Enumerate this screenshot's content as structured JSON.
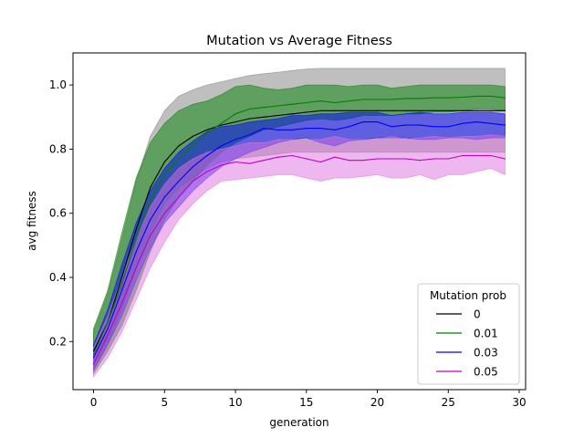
{
  "chart_data": {
    "type": "line",
    "title": "Mutation vs Average Fitness",
    "xlabel": "generation",
    "ylabel": "avg fitness",
    "xlim": [
      -1.45,
      30.45
    ],
    "ylim": [
      0.05,
      1.1
    ],
    "xticks": [
      0,
      5,
      10,
      15,
      20,
      25,
      30
    ],
    "yticks": [
      0.2,
      0.4,
      0.6,
      0.8,
      1.0
    ],
    "xtick_labels": [
      "0",
      "5",
      "10",
      "15",
      "20",
      "25",
      "30"
    ],
    "ytick_labels": [
      "0.2",
      "0.4",
      "0.6",
      "0.8",
      "1.0"
    ],
    "grid": false,
    "legend": {
      "title": "Mutation prob",
      "placement": "lower-right"
    },
    "x": [
      0,
      1,
      2,
      3,
      4,
      5,
      6,
      7,
      8,
      9,
      10,
      11,
      12,
      13,
      14,
      15,
      16,
      17,
      18,
      19,
      20,
      21,
      22,
      23,
      24,
      25,
      26,
      27,
      28,
      29
    ],
    "series": [
      {
        "name": "0",
        "color": "#000000",
        "band_color": "#808080",
        "values": [
          0.17,
          0.26,
          0.4,
          0.55,
          0.68,
          0.76,
          0.81,
          0.84,
          0.86,
          0.875,
          0.885,
          0.895,
          0.9,
          0.905,
          0.91,
          0.915,
          0.92,
          0.92,
          0.92,
          0.92,
          0.92,
          0.92,
          0.92,
          0.92,
          0.92,
          0.92,
          0.92,
          0.92,
          0.92,
          0.92
        ],
        "upper": [
          0.23,
          0.35,
          0.52,
          0.7,
          0.84,
          0.92,
          0.965,
          0.985,
          1.0,
          1.01,
          1.02,
          1.03,
          1.035,
          1.04,
          1.045,
          1.05,
          1.052,
          1.052,
          1.052,
          1.052,
          1.052,
          1.052,
          1.052,
          1.052,
          1.052,
          1.052,
          1.052,
          1.052,
          1.052,
          1.052
        ],
        "lower": [
          0.11,
          0.19,
          0.3,
          0.43,
          0.54,
          0.63,
          0.68,
          0.71,
          0.74,
          0.76,
          0.77,
          0.775,
          0.78,
          0.785,
          0.79,
          0.79,
          0.79,
          0.79,
          0.79,
          0.79,
          0.79,
          0.79,
          0.79,
          0.79,
          0.79,
          0.79,
          0.79,
          0.79,
          0.79,
          0.79
        ]
      },
      {
        "name": "0.01",
        "color": "#008000",
        "band_color": "#008000",
        "values": [
          0.16,
          0.26,
          0.38,
          0.52,
          0.64,
          0.72,
          0.77,
          0.81,
          0.85,
          0.88,
          0.91,
          0.925,
          0.93,
          0.935,
          0.94,
          0.945,
          0.95,
          0.945,
          0.95,
          0.955,
          0.955,
          0.955,
          0.958,
          0.958,
          0.96,
          0.96,
          0.962,
          0.965,
          0.965,
          0.96
        ],
        "upper": [
          0.24,
          0.36,
          0.54,
          0.71,
          0.82,
          0.88,
          0.92,
          0.94,
          0.95,
          0.97,
          0.995,
          1.0,
          0.99,
          0.985,
          0.99,
          1.0,
          1.0,
          1.0,
          0.995,
          1.0,
          1.0,
          0.99,
          0.995,
          1.0,
          1.0,
          1.0,
          1.0,
          1.0,
          1.0,
          0.995
        ],
        "lower": [
          0.1,
          0.17,
          0.25,
          0.36,
          0.48,
          0.58,
          0.65,
          0.7,
          0.75,
          0.79,
          0.82,
          0.84,
          0.86,
          0.87,
          0.88,
          0.89,
          0.895,
          0.89,
          0.895,
          0.905,
          0.905,
          0.905,
          0.91,
          0.91,
          0.915,
          0.915,
          0.92,
          0.925,
          0.925,
          0.92
        ]
      },
      {
        "name": "0.03",
        "color": "#0000ff",
        "band_color": "#0000ff",
        "values": [
          0.15,
          0.24,
          0.36,
          0.48,
          0.58,
          0.65,
          0.7,
          0.745,
          0.78,
          0.81,
          0.83,
          0.845,
          0.865,
          0.86,
          0.86,
          0.865,
          0.865,
          0.86,
          0.87,
          0.885,
          0.885,
          0.87,
          0.875,
          0.875,
          0.87,
          0.87,
          0.88,
          0.885,
          0.88,
          0.875
        ],
        "upper": [
          0.19,
          0.3,
          0.44,
          0.57,
          0.67,
          0.74,
          0.79,
          0.825,
          0.855,
          0.87,
          0.875,
          0.885,
          0.89,
          0.895,
          0.905,
          0.905,
          0.91,
          0.91,
          0.915,
          0.915,
          0.915,
          0.905,
          0.91,
          0.915,
          0.91,
          0.91,
          0.915,
          0.915,
          0.915,
          0.91
        ],
        "lower": [
          0.11,
          0.19,
          0.28,
          0.39,
          0.49,
          0.57,
          0.62,
          0.67,
          0.71,
          0.745,
          0.77,
          0.79,
          0.805,
          0.82,
          0.83,
          0.835,
          0.82,
          0.81,
          0.825,
          0.83,
          0.835,
          0.835,
          0.835,
          0.83,
          0.83,
          0.835,
          0.835,
          0.83,
          0.835,
          0.835
        ]
      },
      {
        "name": "0.05",
        "color": "#c000c0",
        "band_color": "#e070e0",
        "values": [
          0.13,
          0.22,
          0.32,
          0.43,
          0.53,
          0.6,
          0.65,
          0.7,
          0.73,
          0.75,
          0.76,
          0.755,
          0.765,
          0.775,
          0.78,
          0.77,
          0.76,
          0.775,
          0.765,
          0.765,
          0.77,
          0.77,
          0.77,
          0.765,
          0.77,
          0.77,
          0.78,
          0.78,
          0.78,
          0.77
        ],
        "upper": [
          0.18,
          0.28,
          0.4,
          0.52,
          0.62,
          0.69,
          0.74,
          0.77,
          0.79,
          0.8,
          0.81,
          0.82,
          0.82,
          0.83,
          0.83,
          0.83,
          0.83,
          0.84,
          0.83,
          0.83,
          0.83,
          0.84,
          0.83,
          0.835,
          0.84,
          0.835,
          0.84,
          0.84,
          0.845,
          0.84
        ],
        "lower": [
          0.09,
          0.15,
          0.23,
          0.33,
          0.43,
          0.51,
          0.58,
          0.63,
          0.67,
          0.7,
          0.705,
          0.71,
          0.715,
          0.72,
          0.72,
          0.71,
          0.7,
          0.71,
          0.71,
          0.715,
          0.72,
          0.71,
          0.71,
          0.72,
          0.705,
          0.72,
          0.72,
          0.73,
          0.74,
          0.72
        ]
      }
    ]
  }
}
